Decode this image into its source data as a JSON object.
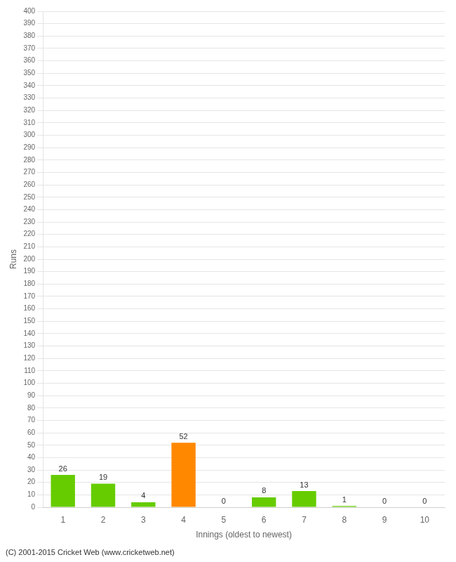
{
  "chart_data": {
    "type": "bar",
    "categories": [
      1,
      2,
      3,
      4,
      5,
      6,
      7,
      8,
      9,
      10
    ],
    "values": [
      26,
      19,
      4,
      52,
      0,
      8,
      13,
      1,
      0,
      0
    ],
    "colors": [
      "#66cc00",
      "#66cc00",
      "#66cc00",
      "#ff8800",
      "#66cc00",
      "#66cc00",
      "#66cc00",
      "#66cc00",
      "#66cc00",
      "#66cc00"
    ],
    "x_label": "Innings (oldest to newest)",
    "y_label": "Runs",
    "ylim": [
      0,
      400
    ],
    "yticks": [
      0,
      10,
      20,
      30,
      40,
      50,
      60,
      70,
      80,
      90,
      100,
      110,
      120,
      130,
      140,
      150,
      160,
      170,
      180,
      190,
      200,
      210,
      220,
      230,
      240,
      250,
      260,
      270,
      280,
      290,
      300,
      310,
      320,
      330,
      340,
      350,
      360,
      370,
      380,
      390,
      400
    ],
    "grid": true,
    "data_labels": true,
    "annotations": [
      "(C) 2001-2015 Cricket Web (www.cricketweb.net)"
    ]
  }
}
